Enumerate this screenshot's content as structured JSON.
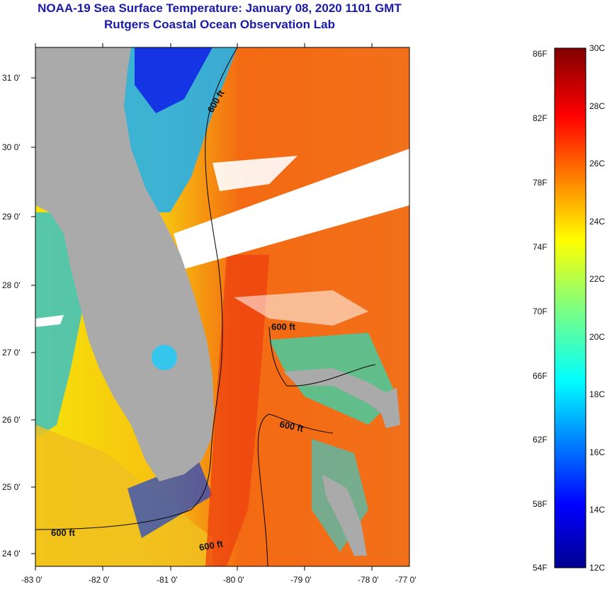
{
  "header": {
    "title": "NOAA-19 Sea Surface Temperature:  January 08, 2020 1101 GMT",
    "subtitle": "Rutgers Coastal Ocean Observation Lab"
  },
  "map": {
    "lon_ticks": [
      "-83 0'",
      "-82 0'",
      "-81 0'",
      "-80 0'",
      "-79 0'",
      "-78 0'",
      "-77 0'"
    ],
    "lat_ticks": [
      "31 0'",
      "30 0'",
      "29 0'",
      "28 0'",
      "27 0'",
      "26 0'",
      "25 0'",
      "24 0'"
    ],
    "contour_labels": [
      "600 ft",
      "600 ft",
      "600 ft",
      "600 ft",
      "600 ft"
    ],
    "colors": {
      "land": "#aaaaaa",
      "cloud": "#ffffff",
      "contour": "#000000"
    }
  },
  "colorbar": {
    "fahrenheit_labels": [
      "86F",
      "82F",
      "78F",
      "74F",
      "70F",
      "66F",
      "62F",
      "58F",
      "54F"
    ],
    "celsius_labels": [
      "30C",
      "28C",
      "26C",
      "24C",
      "22C",
      "20C",
      "18C",
      "16C",
      "14C",
      "12C"
    ],
    "range_c": [
      12,
      30
    ],
    "colormap": "jet"
  }
}
